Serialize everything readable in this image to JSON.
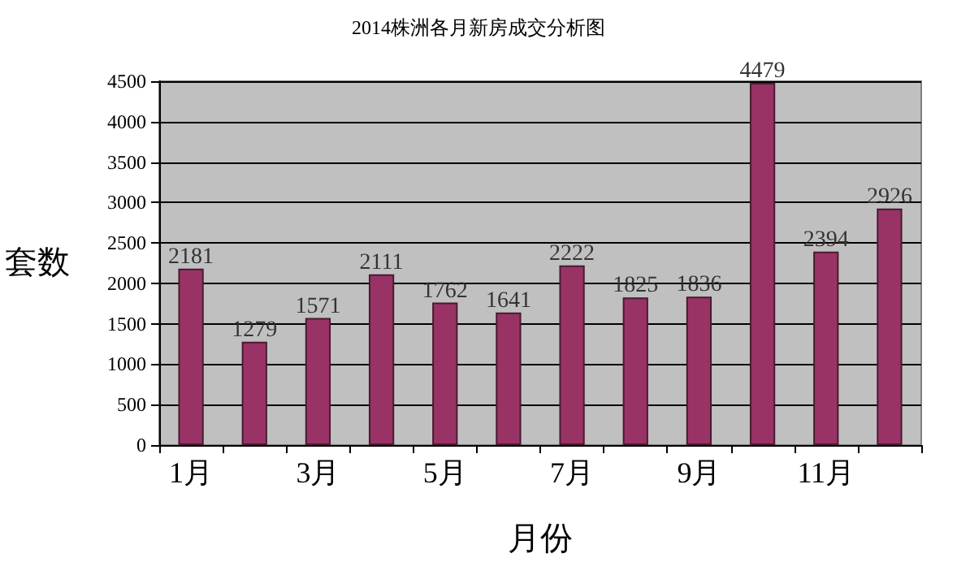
{
  "chart_data": {
    "type": "bar",
    "title": "2014株洲各月新房成交分析图",
    "xlabel": "月份",
    "ylabel": "套数",
    "categories": [
      "1月",
      null,
      "3月",
      null,
      "5月",
      null,
      "7月",
      null,
      "9月",
      null,
      "11月",
      null
    ],
    "values": [
      2181,
      1279,
      1571,
      2111,
      1762,
      1641,
      2222,
      1825,
      1836,
      4479,
      2394,
      2926
    ],
    "color": "#993366",
    "ylim": [
      0,
      4500
    ],
    "yticks": [
      0,
      500,
      1000,
      1500,
      2000,
      2500,
      3000,
      3500,
      4000,
      4500
    ],
    "grid": "y",
    "data_labels": true
  }
}
